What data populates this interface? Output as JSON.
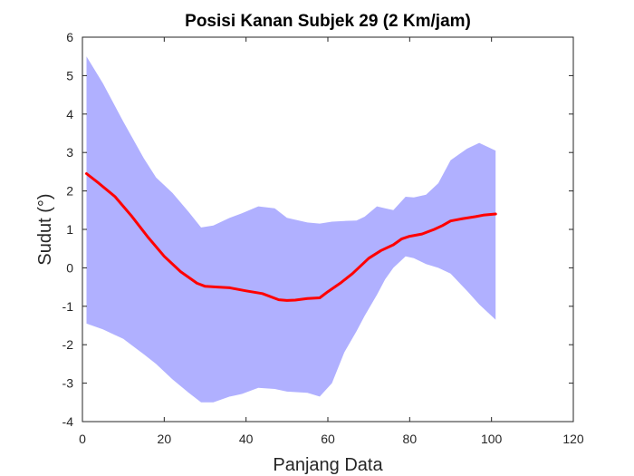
{
  "chart_data": {
    "type": "line",
    "title": "Posisi Kanan Subjek 29 (2 Km/jam)",
    "xlabel": "Panjang Data",
    "ylabel": "Sudut (°)",
    "xlim": [
      0,
      120
    ],
    "ylim": [
      -4,
      6
    ],
    "xticks": [
      0,
      20,
      40,
      60,
      80,
      100,
      120
    ],
    "yticks": [
      -4,
      -3,
      -2,
      -1,
      0,
      1,
      2,
      3,
      4,
      5,
      6
    ],
    "grid": false,
    "legend": "none",
    "colors": {
      "mean": "#ff0000",
      "band": "#b0b0ff",
      "axes": "#262626"
    },
    "series": [
      {
        "role": "mean",
        "x": [
          1,
          4,
          8,
          12,
          16,
          20,
          24,
          28,
          30,
          33,
          36,
          40,
          44,
          48,
          50,
          52,
          55,
          58,
          60,
          63,
          66,
          70,
          73,
          76,
          78,
          80,
          83,
          86,
          88,
          90,
          93,
          96,
          98,
          101
        ],
        "y": [
          2.45,
          2.2,
          1.85,
          1.35,
          0.8,
          0.3,
          -0.1,
          -0.4,
          -0.48,
          -0.5,
          -0.52,
          -0.6,
          -0.67,
          -0.83,
          -0.85,
          -0.84,
          -0.8,
          -0.78,
          -0.62,
          -0.4,
          -0.15,
          0.25,
          0.45,
          0.6,
          0.75,
          0.82,
          0.88,
          1.0,
          1.1,
          1.22,
          1.28,
          1.33,
          1.37,
          1.4
        ]
      },
      {
        "role": "band",
        "x": [
          1,
          5,
          10,
          15,
          18,
          22,
          26,
          29,
          32,
          36,
          39,
          43,
          47,
          50,
          55,
          58,
          61,
          64,
          67,
          69,
          72,
          74,
          76,
          79,
          81,
          84,
          87,
          90,
          94,
          97,
          101
        ],
        "upper": [
          5.5,
          4.8,
          3.8,
          2.85,
          2.35,
          1.95,
          1.45,
          1.05,
          1.1,
          1.3,
          1.42,
          1.6,
          1.55,
          1.3,
          1.18,
          1.15,
          1.2,
          1.22,
          1.23,
          1.33,
          1.6,
          1.55,
          1.5,
          1.85,
          1.83,
          1.9,
          2.2,
          2.8,
          3.1,
          3.25,
          3.05
        ],
        "lower": [
          -1.45,
          -1.6,
          -1.85,
          -2.25,
          -2.5,
          -2.9,
          -3.25,
          -3.5,
          -3.5,
          -3.35,
          -3.28,
          -3.12,
          -3.15,
          -3.22,
          -3.25,
          -3.35,
          -3.0,
          -2.2,
          -1.65,
          -1.25,
          -0.7,
          -0.3,
          0.0,
          0.3,
          0.25,
          0.1,
          0.0,
          -0.15,
          -0.6,
          -0.95,
          -1.35
        ]
      }
    ]
  }
}
